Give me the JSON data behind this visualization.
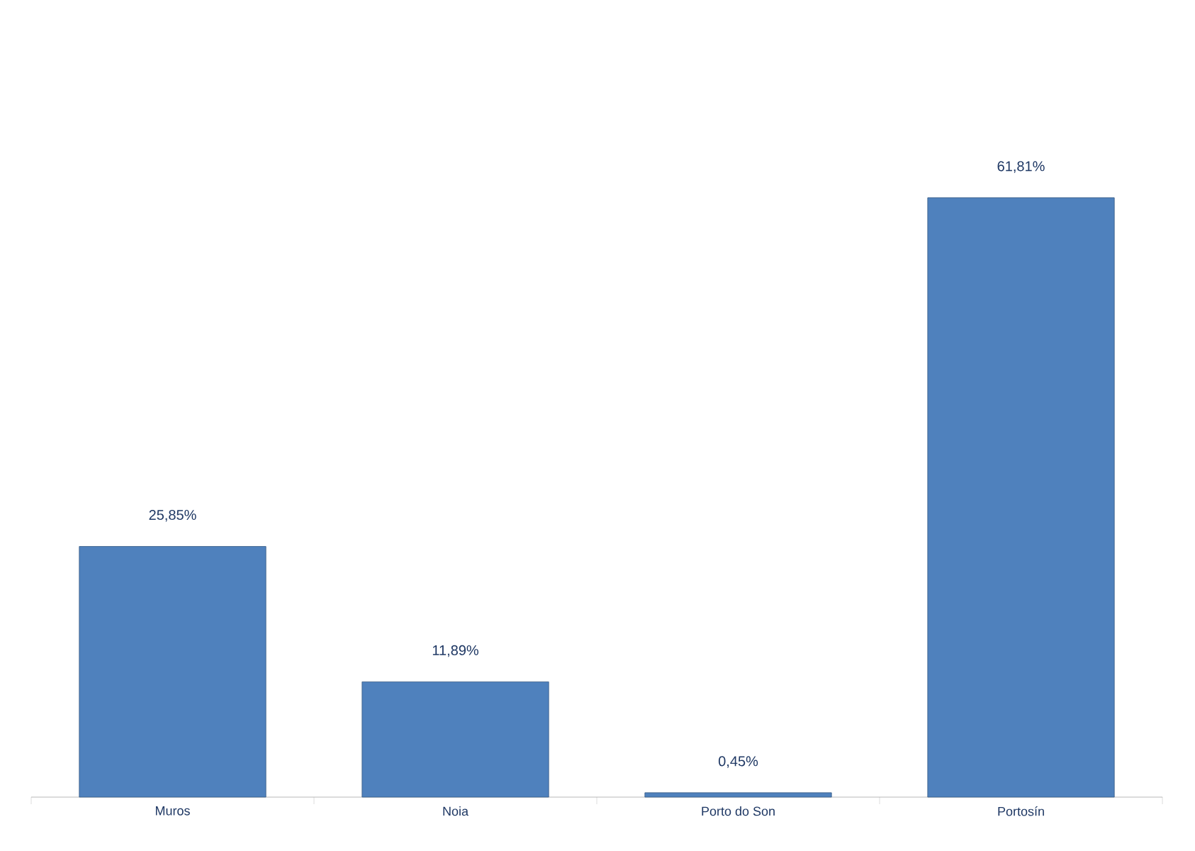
{
  "chart_data": {
    "type": "bar",
    "categories": [
      "Muros",
      "Noia",
      "Porto do Son",
      "Portosín"
    ],
    "values": [
      25.85,
      11.89,
      0.45,
      61.81
    ],
    "value_labels": [
      "25,85%",
      "11,89%",
      "0,45%",
      "61,81%"
    ],
    "color": "#4f81bd"
  }
}
